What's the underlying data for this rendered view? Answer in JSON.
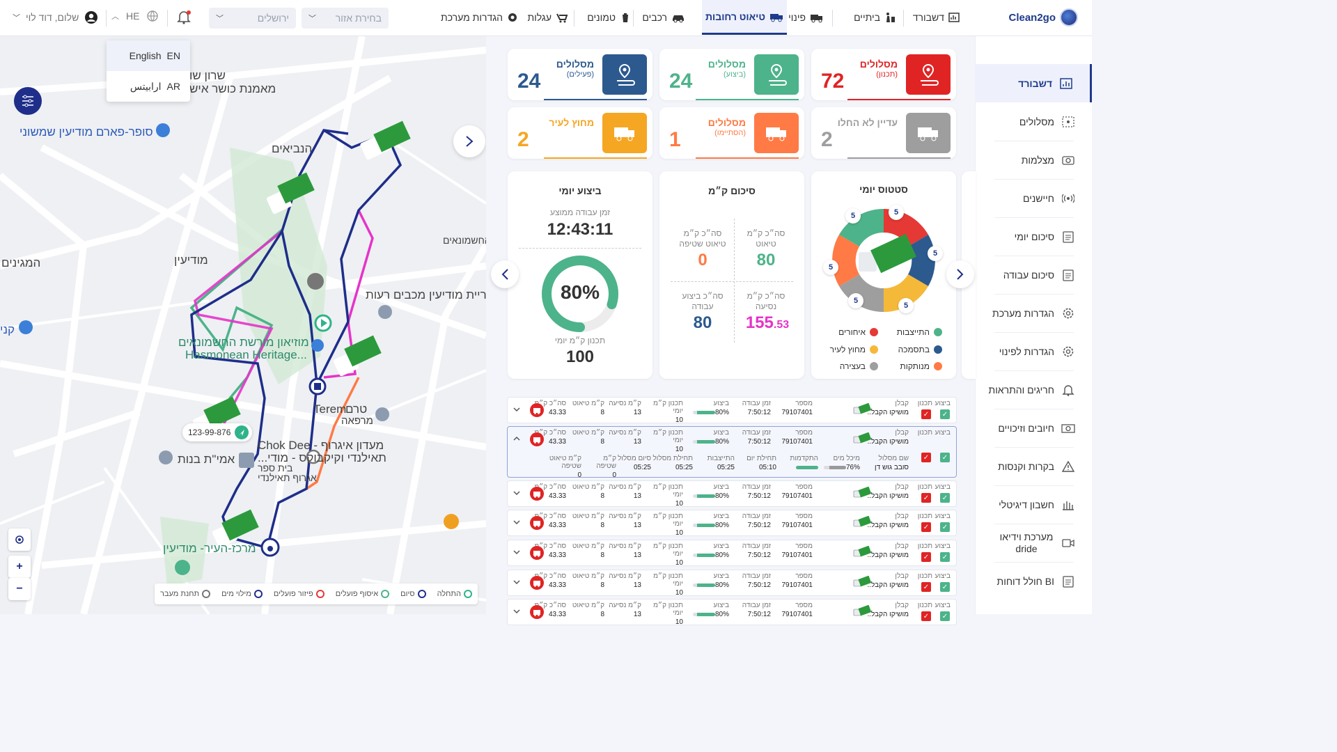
{
  "brand": {
    "name": "Clean2go"
  },
  "nav": {
    "tabs": [
      {
        "label": "דשבורד"
      },
      {
        "label": "ביתיים"
      },
      {
        "label": "פינוי גזם"
      },
      {
        "label": "טיאוט רחובות"
      },
      {
        "label": "רכבים"
      },
      {
        "label": "טמונים"
      },
      {
        "label": "עגלות"
      },
      {
        "label": "הגדרות מערכת"
      }
    ],
    "area_select": "בחירת אזור",
    "city_select": "ירושלים",
    "lang": "HE",
    "greeting": "שלום, דוד לוי"
  },
  "lang_menu": {
    "items": [
      {
        "label": "English",
        "code": "EN"
      },
      {
        "label": "ارابيتس",
        "code": "AR"
      }
    ]
  },
  "sidebar": {
    "items": [
      {
        "label": "דשבורד",
        "icon": "chart-icon"
      },
      {
        "label": "מסלולים",
        "icon": "route-icon"
      },
      {
        "label": "מצלמות",
        "icon": "camera-icon"
      },
      {
        "label": "חיישנים",
        "icon": "sensor-icon"
      },
      {
        "label": "סיכום יומי",
        "icon": "clipboard-icon"
      },
      {
        "label": "סיכום עבודה",
        "icon": "clipboard-icon"
      },
      {
        "label": "הגדרות מערכת",
        "icon": "gear-icon"
      },
      {
        "label": "הגדרות לפינוי",
        "icon": "gear-icon"
      },
      {
        "label": "חריגים והתראות",
        "icon": "bell-icon"
      },
      {
        "label": "חיובים וזיכויים",
        "icon": "money-icon"
      },
      {
        "label": "בקרות וקנסות",
        "icon": "warning-icon"
      },
      {
        "label": "חשבון דיגיטלי",
        "icon": "building-icon"
      },
      {
        "label": "מערכת וידיאו dride",
        "icon": "video-icon"
      },
      {
        "label": "BI חולל דוחות",
        "icon": "report-icon"
      }
    ]
  },
  "kpis": [
    {
      "title": "מסלולים",
      "sub": "(תכנון)",
      "value": "72",
      "color": "#e02424"
    },
    {
      "title": "מסלולים",
      "sub": "(ביצוע)",
      "value": "24",
      "color": "#4db38a"
    },
    {
      "title": "מסלולים",
      "sub": "(פעילים)",
      "value": "24",
      "color": "#2c5a8f"
    },
    {
      "title": "עדיין לא החלו",
      "sub": "",
      "value": "2",
      "color": "#9e9e9e"
    },
    {
      "title": "מסלולים",
      "sub": "(הסתיימו)",
      "value": "1",
      "color": "#ff7a45"
    },
    {
      "title": "מחוץ לעיר",
      "sub": "",
      "value": "2",
      "color": "#f5a623"
    }
  ],
  "status_panel": {
    "title": "סטטוס יומי",
    "segment_value": "5",
    "legend": [
      {
        "label": "התייצבות",
        "color": "#4db38a"
      },
      {
        "label": "איחורים",
        "color": "#e53935"
      },
      {
        "label": "בתסמכה",
        "color": "#2c5a8f"
      },
      {
        "label": "מחוץ לעיר",
        "color": "#f5b93a"
      },
      {
        "label": "מנותקות",
        "color": "#ff7a45"
      },
      {
        "label": "בעצירה",
        "color": "#9e9e9e"
      }
    ]
  },
  "km_panel": {
    "title": "סיכום ק״מ",
    "sweep_label": "סה״כ ק״מ טיאוט",
    "sweep_value": "80",
    "suction_label": "סה״כ ק״מ טיאוט שטיפה",
    "suction_value": "0",
    "drive_label": "סה״כ ק״מ נסיעה",
    "drive_int": "155",
    "drive_dec": ".53",
    "work_label": "סה״כ ביצוע עבודה",
    "work_value": "80"
  },
  "perf_panel": {
    "title": "ביצוע יומי",
    "avg_label": "זמן עבודה ממוצע",
    "avg_value": "12:43:11",
    "percent": "80%",
    "progress": 0.8,
    "plan_label": "תכנון ק״מ יומי",
    "plan_value": "100"
  },
  "table": {
    "headers": {
      "exec": "ביצוע",
      "plan": "תכנון",
      "contractor": "קבלן",
      "number": "מספר",
      "work_time": "זמן עבודה",
      "performance": "ביצוע",
      "daily_km_plan": "תכנון ק״מ יומי",
      "drive_km": "ק״מ נסיעה",
      "sweep_km": "ק״מ טיאוט",
      "total_km": "סה״כ ק״מ"
    },
    "row": {
      "contractor": "מושיקו הקבל..",
      "number": "79107401",
      "work_time": "7:50:12",
      "performance": "80%",
      "daily_km_plan": "10",
      "drive_km": "13",
      "sweep_km": "8",
      "total_km": "43.33"
    },
    "expanded": {
      "h": {
        "route_name": "שם מסלול",
        "water_tank": "מיכל מים",
        "progress": "התקדמות",
        "day_start": "תחילת יום",
        "stabilize": "התייצבות",
        "route_start": "תחילת מסלול",
        "route_end": "סיום מסלול",
        "wash_km": "ק״מ שטיפה",
        "sweep_wash_km": "ק״מ טיאוט שטיפה"
      },
      "v": {
        "route_name": "סובב גוש דן",
        "water_tank": "76%",
        "day_start": "05:10",
        "stabilize": "05:25",
        "route_start": "05:25",
        "route_end": "05:25",
        "wash_km": "0",
        "sweep_wash_km": "0"
      }
    }
  },
  "map": {
    "plate": "123-99-876",
    "labels": {
      "neighborhood1": "שרון שו",
      "kosher": "מאמנת כושר איש",
      "supermarket": "סופר-פארם מודיעין שמשוני",
      "prophets": "הנביאים",
      "modiin": "מודיעין",
      "maginim": "המגינים",
      "hashmonaim": "החשמונאים",
      "carpark": "ריית מודיעין מכבים רעות",
      "museum": "מוזיאון מורשת החשמונאים",
      "museum_en": "Hasmonean Heritage...",
      "terem_he": "טרם",
      "terem_en": "Terem",
      "clinic": "מרפאה",
      "chokdee": "מעדון איגרוף - Chok Dee",
      "thai": "תאילנדי וקיקבוקס - מודי...",
      "school": "בית ספר",
      "boxing": "אגרוף תאילנדי",
      "amit": "אמי\"ת בנות",
      "center": "מרכז-העיר- מודיעין",
      "kil": "קני",
      "macabbi": "מכבי"
    },
    "legend": [
      {
        "label": "התחלה",
        "color": "#2fb38a"
      },
      {
        "label": "סיום",
        "color": "#1e2e8a"
      },
      {
        "label": "איסוף פועלים",
        "color": "#4db38a"
      },
      {
        "label": "פיזור פועלים",
        "color": "#e53935"
      },
      {
        "label": "מילוי מים",
        "color": "#1e2e8a"
      },
      {
        "label": "תחנת מעבר",
        "color": "#777"
      }
    ]
  }
}
